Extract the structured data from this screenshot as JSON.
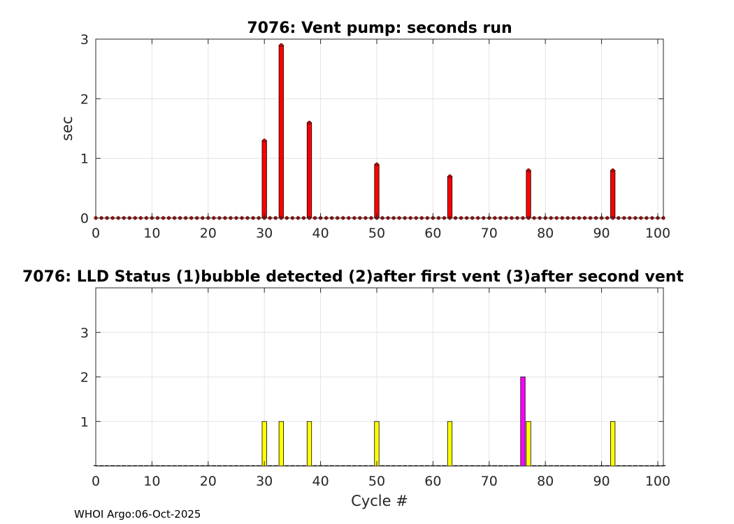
{
  "footer": "WHOI Argo:06-Oct-2025",
  "chart_data": [
    {
      "type": "bar",
      "title": "7076: Vent pump: seconds run",
      "xlabel": "",
      "ylabel": "sec",
      "xlim": [
        0,
        101
      ],
      "ylim": [
        0,
        3
      ],
      "xticks": [
        0,
        10,
        20,
        30,
        40,
        50,
        60,
        70,
        80,
        90,
        100
      ],
      "yticks": [
        0,
        1,
        2,
        3
      ],
      "grid": true,
      "bar_color": "#ff0000",
      "marker_color": "#cc0000",
      "x_start": 0,
      "x_end": 101,
      "points": [
        {
          "x": 30,
          "y": 1.3
        },
        {
          "x": 33,
          "y": 2.9
        },
        {
          "x": 38,
          "y": 1.6
        },
        {
          "x": 50,
          "y": 0.9
        },
        {
          "x": 63,
          "y": 0.7
        },
        {
          "x": 77,
          "y": 0.8
        },
        {
          "x": 92,
          "y": 0.8
        }
      ]
    },
    {
      "type": "bar",
      "title": "7076: LLD Status   (1)bubble detected   (2)after first vent  (3)after second vent",
      "xlabel": "Cycle #",
      "ylabel": "",
      "xlim": [
        0,
        101
      ],
      "ylim": [
        0,
        4
      ],
      "xticks": [
        0,
        10,
        20,
        30,
        40,
        50,
        60,
        70,
        80,
        90,
        100
      ],
      "yticks": [
        1,
        2,
        3
      ],
      "grid": true,
      "x_start": 0,
      "x_end": 101,
      "points": [
        {
          "x": 30,
          "y": 1,
          "color": "#ffff00"
        },
        {
          "x": 33,
          "y": 1,
          "color": "#ffff00"
        },
        {
          "x": 38,
          "y": 1,
          "color": "#ffff00"
        },
        {
          "x": 50,
          "y": 1,
          "color": "#ffff00"
        },
        {
          "x": 63,
          "y": 1,
          "color": "#ffff00"
        },
        {
          "x": 76,
          "y": 2,
          "color": "#ff00ff"
        },
        {
          "x": 77,
          "y": 1,
          "color": "#ffff00"
        },
        {
          "x": 92,
          "y": 1,
          "color": "#ffff00"
        }
      ]
    }
  ]
}
